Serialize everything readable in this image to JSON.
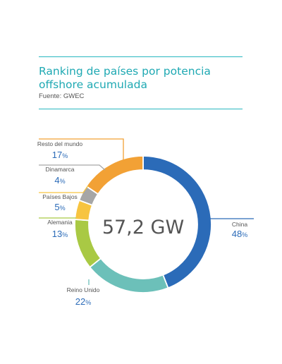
{
  "header": {
    "title_line1": "Ranking de países por potencia",
    "title_line2": "offshore acumulada",
    "source": "Fuente: GWEC"
  },
  "center_label": "57,2 GW",
  "chart_data": {
    "type": "pie",
    "donut": true,
    "total_label": "57,2 GW",
    "categories": [
      "China",
      "Reino Unido",
      "Alemania",
      "Países Bajos",
      "Dinamarca",
      "Resto del mundo"
    ],
    "values": [
      48,
      22,
      13,
      5,
      4,
      17
    ],
    "value_labels": [
      "48%",
      "22%",
      "13%",
      "5%",
      "4%",
      "17%"
    ],
    "value_suffix": "%",
    "colors": [
      "#2b6bb8",
      "#6cc0b9",
      "#a9c944",
      "#f7c440",
      "#a6a6a6",
      "#f2a135"
    ],
    "start": "top",
    "direction": "clockwise"
  }
}
